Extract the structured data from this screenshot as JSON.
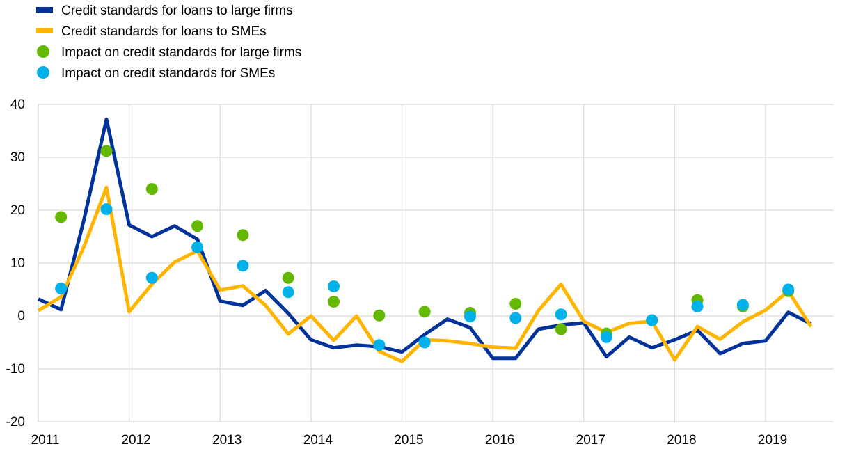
{
  "chart_data": {
    "type": "line",
    "title": "",
    "xlabel": "",
    "ylabel": "",
    "ylim": [
      -20,
      40
    ],
    "yticks": [
      -20,
      -10,
      0,
      10,
      20,
      30,
      40
    ],
    "xlim": [
      2011,
      2019.75
    ],
    "xticks": [
      "2011",
      "2012",
      "2013",
      "2014",
      "2015",
      "2016",
      "2017",
      "2018",
      "2019"
    ],
    "grid": true,
    "legend_position": "top-left",
    "series": [
      {
        "name": "Credit standards for loans to large firms",
        "kind": "line",
        "color": "#003299",
        "x": [
          2011.0,
          2011.25,
          2011.5,
          2011.75,
          2012.0,
          2012.25,
          2012.5,
          2012.75,
          2013.0,
          2013.25,
          2013.5,
          2013.75,
          2014.0,
          2014.25,
          2014.5,
          2014.75,
          2015.0,
          2015.25,
          2015.5,
          2015.75,
          2016.0,
          2016.25,
          2016.5,
          2016.75,
          2017.0,
          2017.25,
          2017.5,
          2017.75,
          2018.0,
          2018.25,
          2018.5,
          2018.75,
          2019.0,
          2019.25,
          2019.5
        ],
        "y": [
          3.2,
          1.2,
          18,
          37.2,
          17.2,
          15,
          17,
          14.5,
          2.8,
          2,
          4.8,
          0.5,
          -4.5,
          -6,
          -5.5,
          -5.8,
          -6.8,
          -3.5,
          -0.6,
          -2.2,
          -8,
          -8,
          -2.5,
          -1.7,
          -1.3,
          -7.7,
          -4,
          -6,
          -4.5,
          -2.7,
          -7.1,
          -5.2,
          -4.7,
          0.7,
          -1.5
        ]
      },
      {
        "name": "Credit standards for loans to SMEs",
        "kind": "line",
        "color": "#FFB400",
        "x": [
          2011.0,
          2011.25,
          2011.5,
          2011.75,
          2012.0,
          2012.25,
          2012.5,
          2012.75,
          2013.0,
          2013.25,
          2013.5,
          2013.75,
          2014.0,
          2014.25,
          2014.5,
          2014.75,
          2015.0,
          2015.25,
          2015.5,
          2015.75,
          2016.0,
          2016.25,
          2016.5,
          2016.75,
          2017.0,
          2017.25,
          2017.5,
          2017.75,
          2018.0,
          2018.25,
          2018.5,
          2018.75,
          2019.0,
          2019.25,
          2019.5
        ],
        "y": [
          1,
          3.6,
          13,
          24.3,
          0.8,
          6,
          10.2,
          12.3,
          4.9,
          5.7,
          2,
          -3.4,
          0,
          -4.6,
          0,
          -6.7,
          -8.6,
          -4.5,
          -4.7,
          -5.2,
          -5.9,
          -6.1,
          1,
          6,
          -1,
          -3.1,
          -1.4,
          -1,
          -8.3,
          -2,
          -4.4,
          -1.1,
          1.1,
          4.7,
          -2
        ]
      },
      {
        "name": "Impact on credit standards for large firms",
        "kind": "scatter",
        "color": "#65B800",
        "x": [
          2011.25,
          2011.75,
          2012.25,
          2012.75,
          2013.25,
          2013.75,
          2014.25,
          2014.75,
          2015.25,
          2015.75,
          2016.25,
          2016.75,
          2017.25,
          2017.75,
          2018.25,
          2018.75,
          2019.25
        ],
        "y": [
          18.7,
          31.2,
          24,
          17,
          15.3,
          7.2,
          2.7,
          0.1,
          0.8,
          0.6,
          2.3,
          -2.5,
          -3.3,
          -0.8,
          3,
          1.8,
          4.7
        ]
      },
      {
        "name": "Impact on credit standards for SMEs",
        "kind": "scatter",
        "color": "#00B1EA",
        "x": [
          2011.25,
          2011.75,
          2012.25,
          2012.75,
          2013.25,
          2013.75,
          2014.25,
          2014.75,
          2015.25,
          2015.75,
          2016.25,
          2016.75,
          2017.25,
          2017.75,
          2018.25,
          2018.75,
          2019.25
        ],
        "y": [
          5.2,
          20.2,
          7.2,
          13,
          9.5,
          4.5,
          5.6,
          -5.5,
          -5,
          -0.1,
          -0.4,
          0.3,
          -4,
          -0.8,
          1.8,
          2.1,
          5
        ]
      }
    ]
  }
}
